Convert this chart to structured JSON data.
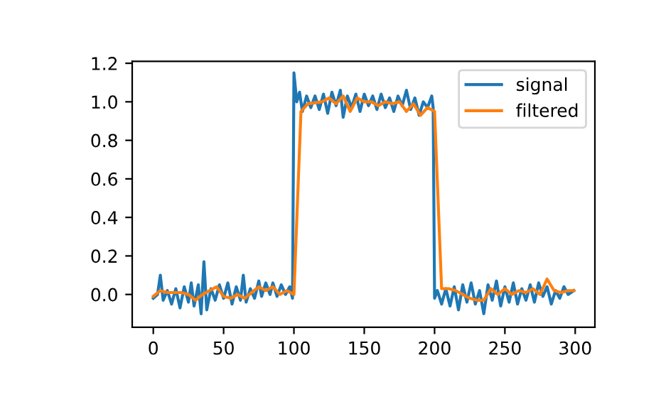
{
  "chart_data": {
    "type": "line",
    "xlim": [
      -15,
      314
    ],
    "ylim": [
      -0.17,
      1.21
    ],
    "xticks": [
      0,
      50,
      100,
      150,
      200,
      250,
      300
    ],
    "yticks": [
      {
        "value": 0,
        "label": "0.0"
      },
      {
        "value": 0.2,
        "label": "0.2"
      },
      {
        "value": 0.4,
        "label": "0.4"
      },
      {
        "value": 0.6,
        "label": "0.6"
      },
      {
        "value": 0.8,
        "label": "0.8"
      },
      {
        "value": 1.0,
        "label": "1.0"
      },
      {
        "value": 1.2,
        "label": "1.2"
      }
    ],
    "legend": "top right",
    "grid": false,
    "marker": "none",
    "line_style": "solid",
    "series": [
      {
        "name": "signal",
        "color": "#1f77b4",
        "x": [
          0,
          3,
          5,
          7,
          10,
          13,
          16,
          19,
          22,
          25,
          27,
          29,
          32,
          34,
          36,
          38,
          41,
          44,
          47,
          50,
          53,
          56,
          59,
          62,
          64,
          66,
          69,
          72,
          75,
          77,
          80,
          83,
          85,
          88,
          91,
          94,
          97,
          99,
          100,
          102,
          104,
          106,
          109,
          112,
          115,
          118,
          121,
          124,
          127,
          130,
          133,
          135,
          138,
          141,
          144,
          147,
          150,
          153,
          156,
          159,
          162,
          165,
          168,
          171,
          174,
          177,
          180,
          183,
          186,
          189,
          192,
          195,
          198,
          199,
          200,
          202,
          205,
          208,
          211,
          214,
          217,
          220,
          223,
          226,
          229,
          232,
          235,
          238,
          241,
          244,
          247,
          250,
          253,
          256,
          259,
          262,
          265,
          268,
          271,
          274,
          277,
          280,
          283,
          286,
          289,
          292,
          295,
          299
        ],
        "values": [
          -0.02,
          0.0,
          0.1,
          -0.03,
          0.02,
          -0.05,
          0.03,
          -0.07,
          0.04,
          -0.04,
          0.06,
          -0.06,
          0.05,
          -0.1,
          0.17,
          -0.08,
          0.03,
          -0.03,
          0.05,
          -0.02,
          0.06,
          -0.05,
          0.04,
          -0.03,
          0.1,
          -0.04,
          0.03,
          -0.02,
          0.07,
          -0.01,
          0.06,
          0.0,
          0.06,
          -0.01,
          0.05,
          0.0,
          0.04,
          -0.02,
          1.15,
          1.0,
          1.05,
          0.95,
          1.03,
          0.97,
          1.03,
          0.96,
          1.04,
          0.94,
          1.05,
          0.98,
          1.06,
          0.92,
          1.03,
          0.97,
          1.04,
          0.95,
          1.04,
          0.98,
          1.03,
          0.96,
          1.04,
          0.97,
          1.02,
          0.95,
          1.03,
          0.98,
          1.06,
          0.96,
          1.02,
          0.93,
          1.0,
          0.97,
          1.03,
          0.97,
          -0.02,
          0.02,
          -0.05,
          0.03,
          -0.06,
          0.04,
          -0.08,
          0.05,
          -0.04,
          0.06,
          -0.05,
          0.02,
          -0.1,
          0.05,
          -0.03,
          0.07,
          -0.06,
          0.04,
          -0.04,
          0.06,
          -0.05,
          0.03,
          -0.03,
          0.05,
          -0.04,
          0.06,
          -0.01,
          0.04,
          -0.05,
          0.02,
          -0.02,
          0.04,
          0.0,
          0.02
        ]
      },
      {
        "name": "filtered",
        "color": "#ff7f0e",
        "x": [
          0,
          5,
          10,
          15,
          20,
          25,
          30,
          35,
          40,
          45,
          50,
          55,
          60,
          65,
          70,
          75,
          80,
          85,
          90,
          95,
          100,
          105,
          110,
          120,
          125,
          130,
          135,
          140,
          145,
          150,
          155,
          160,
          165,
          170,
          175,
          180,
          185,
          190,
          195,
          200,
          205,
          210,
          215,
          220,
          225,
          230,
          235,
          240,
          245,
          250,
          255,
          260,
          265,
          270,
          275,
          280,
          285,
          290,
          295,
          299
        ],
        "values": [
          -0.01,
          0.02,
          0.01,
          0.01,
          0.01,
          0.0,
          -0.03,
          0.0,
          0.02,
          0.04,
          -0.01,
          -0.02,
          0.0,
          -0.02,
          0.01,
          0.04,
          0.02,
          0.04,
          0.0,
          0.02,
          0.0,
          0.95,
          0.99,
          1.0,
          1.02,
          0.99,
          1.03,
          0.95,
          1.02,
          1.0,
          1.0,
          0.98,
          1.0,
          0.99,
          1.0,
          0.95,
          0.99,
          0.93,
          0.97,
          0.95,
          0.03,
          0.03,
          0.02,
          0.0,
          -0.02,
          -0.03,
          -0.03,
          0.03,
          0.0,
          0.03,
          0.0,
          0.02,
          0.01,
          0.03,
          0.0,
          0.08,
          0.02,
          0.01,
          0.02,
          0.02
        ]
      }
    ]
  }
}
